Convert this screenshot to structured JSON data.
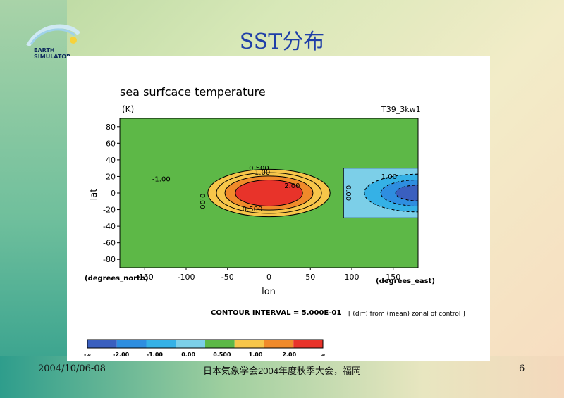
{
  "slide": {
    "title": "SST分布",
    "logo_line1": "EARTH",
    "logo_line2": "SIMULATOR",
    "footer_date": "2004/10/06-08",
    "footer_meeting": "日本気象学会2004年度秋季大会，福岡",
    "footer_page": "6"
  },
  "chart_data": {
    "type": "heatmap",
    "title": "sea surfcace temperature",
    "units": "(K)",
    "run_label": "T39_3kw1",
    "xlabel": "lon",
    "ylabel": "lat",
    "x_unit": "(degrees_east)",
    "y_unit": "(degrees_north)",
    "xlim": [
      -180,
      180
    ],
    "ylim": [
      -90,
      90
    ],
    "xticks": [
      -150,
      -100,
      -50,
      0,
      50,
      100,
      150
    ],
    "yticks": [
      80,
      60,
      40,
      20,
      0,
      -20,
      -40,
      -60,
      -80
    ],
    "contour_interval": "CONTOUR INTERVAL = 5.000E-01",
    "note": "[ (diff) from (mean) zonal of control ]",
    "anomaly_regions": [
      {
        "center_lon": 0,
        "center_lat": 0,
        "lon_halfwidth": 90,
        "lat_halfwidth": 30,
        "peak": 3.0,
        "sign": "positive"
      },
      {
        "center_lon": 180,
        "center_lat": 0,
        "lon_halfwidth": 90,
        "lat_halfwidth": 30,
        "peak": -3.0,
        "sign": "negative"
      }
    ],
    "contour_labels": [
      "0.500",
      "1.00",
      "2.00",
      "0.500",
      "-1.00",
      "1.00",
      "0.00",
      "0.00"
    ],
    "colorbar": {
      "labels": [
        "-∞",
        "-2.00",
        "-1.00",
        "0.00",
        "0.500",
        "1.00",
        "2.00",
        "∞"
      ],
      "colors": [
        "#3a5fbf",
        "#2e8ee0",
        "#35b1e6",
        "#7ccfe8",
        "#5db847",
        "#f7c64a",
        "#f08a2a",
        "#e8332a"
      ]
    }
  }
}
